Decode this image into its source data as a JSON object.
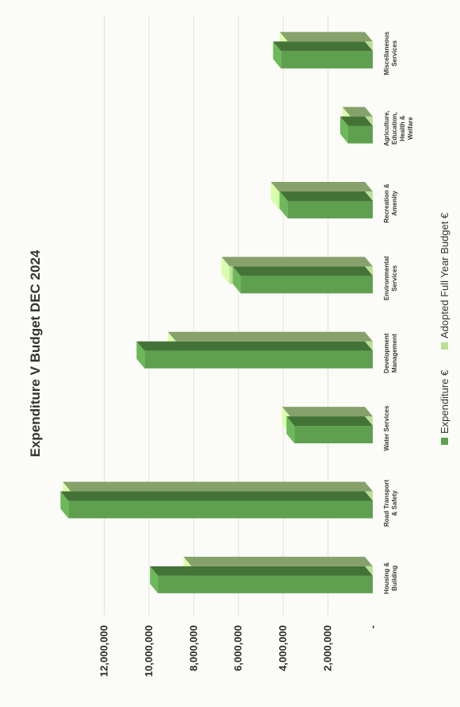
{
  "chart_data": {
    "type": "bar",
    "title": "Expenditure V Budget DEC 2024",
    "categories": [
      [
        "Housing &",
        "Building"
      ],
      [
        "Road Transport",
        "& Safety"
      ],
      [
        "Water Services"
      ],
      [
        "Development",
        "Management"
      ],
      [
        "Environmental",
        "Services"
      ],
      [
        "Recreation &",
        "Amenity"
      ],
      [
        "Agriculture,",
        "Education,",
        "Health &",
        "Welfare"
      ],
      [
        "Miscellaneous",
        "Services"
      ]
    ],
    "series": [
      {
        "name": "Expenditure €",
        "color": "#5fa04e",
        "values": [
          9600000,
          13600000,
          3500000,
          10200000,
          5900000,
          3800000,
          1100000,
          4100000
        ]
      },
      {
        "name": "Adopted Full Year Budget €",
        "color": "#bcdf95",
        "values": [
          8100000,
          13500000,
          3700000,
          8800000,
          6400000,
          4200000,
          1000000,
          3800000
        ]
      }
    ],
    "yticks": [
      "12,000,000",
      "10,000,000",
      "8,000,000",
      "6,000,000",
      "4,000,000",
      "2,000,000",
      "-"
    ],
    "ylim": [
      0,
      14000000
    ],
    "xlabel": "",
    "ylabel": "",
    "legend_position": "bottom",
    "grid": true
  }
}
